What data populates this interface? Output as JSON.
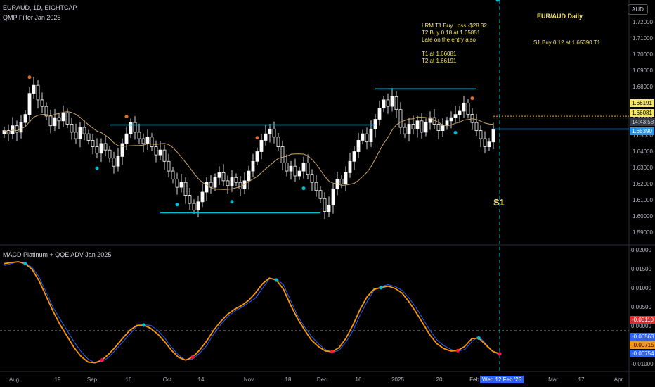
{
  "header": {
    "symbol_line": "EURAUD, 1D, EIGHTCAP",
    "indicator_line": "QMP Filter Jan 2025",
    "macd_title": "MACD Platinum + QQE ADV Jan 2025"
  },
  "annotations": {
    "title": "EUR/AUD Daily",
    "s1_note": "S1 Buy 0.12 at 1.65390 T1",
    "trade_notes": "LRM T1 Buy Loss -$28.32\nT2 Buy 0.18 at 1.65851\nLate on the entry also\n\nT1 at 1.66081\nT2 at 1.66191",
    "s1_label": "S1"
  },
  "currency_button": "AUD",
  "price_tags": [
    {
      "label": "1.66191",
      "value": 1.66191,
      "bg": "#f5e663",
      "fg": "#000000"
    },
    {
      "label": "1.66081",
      "value": 1.66081,
      "bg": "#f5e663",
      "fg": "#000000"
    },
    {
      "label": "14:43:58",
      "value": 1.6553,
      "bg": "#363a45",
      "fg": "#d1d4dc"
    },
    {
      "label": "1.65390",
      "value": 1.6539,
      "bg": "#2196f3",
      "fg": "#ffffff"
    }
  ],
  "macd_tags": [
    {
      "label": "-0.00110",
      "value": -0.0011,
      "bg": "#e02c2c",
      "fg": "#ffffff"
    },
    {
      "label": "-0.00563",
      "value": -0.00563,
      "bg": "#2962ff",
      "fg": "#ffffff"
    },
    {
      "label": "-0.00715",
      "value": -0.00715,
      "bg": "#ff9800",
      "fg": "#000000"
    },
    {
      "label": "-0.00754",
      "value": -0.00754,
      "bg": "#2962ff",
      "fg": "#ffffff"
    }
  ],
  "date_tag": "Wed 12 Feb '25",
  "colors": {
    "up": "#ffffff",
    "down": "#ffffff",
    "ma": "#c8a66a",
    "level": "#00bcd4",
    "macd_fast": "#2962ff",
    "macd_slow": "#ff9800",
    "dot_up": "#00bcd4",
    "dot_down": "#ff1744",
    "qmp_dot": "#e06c2c"
  },
  "chart_data": [
    {
      "type": "candlestick",
      "title": "EURAUD, 1D, EIGHTCAP",
      "ylim": [
        1.585,
        1.725
      ],
      "y_ticks": [
        1.59,
        1.6,
        1.61,
        1.62,
        1.63,
        1.64,
        1.65,
        1.66,
        1.67,
        1.68,
        1.69,
        1.7,
        1.71,
        1.72
      ],
      "x_ticks": [
        "Aug",
        "19",
        "Sep",
        "16",
        "Oct",
        "14",
        "Nov",
        "18",
        "Dec",
        "16",
        "2025",
        "20",
        "Feb",
        "Mar",
        "17",
        "Apr"
      ],
      "closes": [
        1.653,
        1.651,
        1.656,
        1.652,
        1.658,
        1.663,
        1.676,
        1.681,
        1.672,
        1.668,
        1.662,
        1.656,
        1.661,
        1.659,
        1.664,
        1.657,
        1.652,
        1.648,
        1.655,
        1.651,
        1.647,
        1.643,
        1.639,
        1.645,
        1.641,
        1.636,
        1.631,
        1.637,
        1.645,
        1.651,
        1.658,
        1.652,
        1.648,
        1.645,
        1.649,
        1.643,
        1.638,
        1.641,
        1.634,
        1.628,
        1.623,
        1.618,
        1.621,
        1.613,
        1.608,
        1.604,
        1.609,
        1.615,
        1.621,
        1.618,
        1.624,
        1.627,
        1.622,
        1.619,
        1.624,
        1.621,
        1.617,
        1.622,
        1.628,
        1.634,
        1.64,
        1.647,
        1.651,
        1.654,
        1.649,
        1.643,
        1.633,
        1.628,
        1.631,
        1.625,
        1.628,
        1.633,
        1.626,
        1.621,
        1.616,
        1.611,
        1.603,
        1.607,
        1.617,
        1.623,
        1.62,
        1.627,
        1.634,
        1.64,
        1.647,
        1.651,
        1.646,
        1.654,
        1.66,
        1.667,
        1.672,
        1.668,
        1.674,
        1.666,
        1.655,
        1.651,
        1.657,
        1.654,
        1.659,
        1.652,
        1.658,
        1.661,
        1.657,
        1.653,
        1.656,
        1.659,
        1.661,
        1.663,
        1.665,
        1.67,
        1.663,
        1.658,
        1.653,
        1.648,
        1.643,
        1.646,
        1.6539
      ],
      "s1_buy": 1.6539,
      "t1": 1.66081,
      "t2": 1.66191,
      "levels": [
        1.6565,
        1.6022,
        1.6788
      ]
    },
    {
      "type": "line",
      "title": "MACD Platinum + QQE ADV Jan 2025",
      "ylim": [
        -0.0105,
        0.0205
      ],
      "y_ticks": [
        0.02,
        0.015,
        0.01,
        0.005,
        0.0,
        -0.005,
        -0.01
      ],
      "y_tick_labels": [
        "0.02000",
        "0.01500",
        "0.01000",
        "0.00500",
        "0.00000",
        "-0.00500",
        "-0.01000"
      ],
      "series": [
        {
          "values": [
            0.016,
            0.0165,
            0.017,
            0.0168,
            0.0155,
            0.013,
            0.009,
            0.005,
            0.002,
            -0.001,
            -0.004,
            -0.0065,
            -0.0085,
            -0.0095,
            -0.0092,
            -0.008,
            -0.006,
            -0.004,
            -0.002,
            0.0,
            0.0005,
            0.0003,
            -0.001,
            -0.003,
            -0.0055,
            -0.0075,
            -0.0088,
            -0.0085,
            -0.007,
            -0.005,
            -0.002,
            0.0005,
            0.0025,
            0.004,
            0.005,
            0.0062,
            0.0075,
            0.01,
            0.0125,
            0.0125,
            0.011,
            0.007,
            0.003,
            0.0,
            -0.0025,
            -0.0045,
            -0.006,
            -0.0068,
            -0.0062,
            -0.004,
            -0.001,
            0.003,
            0.0065,
            0.0095,
            0.0105,
            0.011,
            0.0105,
            0.0095,
            0.0075,
            0.005,
            0.002,
            -0.001,
            -0.0035,
            -0.005,
            -0.006,
            -0.0065,
            -0.006,
            -0.004,
            -0.0025,
            -0.0045,
            -0.0065,
            -0.0075
          ]
        },
        {
          "values": [
            0.0165,
            0.0168,
            0.017,
            0.0165,
            0.015,
            0.012,
            0.008,
            0.004,
            0.0005,
            -0.0025,
            -0.0055,
            -0.0078,
            -0.0093,
            -0.0095,
            -0.0088,
            -0.0072,
            -0.0052,
            -0.003,
            -0.001,
            0.0003,
            0.0004,
            -0.0005,
            -0.002,
            -0.004,
            -0.0063,
            -0.0081,
            -0.0088,
            -0.008,
            -0.0062,
            -0.0038,
            -0.001,
            0.0013,
            0.0032,
            0.0045,
            0.0055,
            0.0068,
            0.0088,
            0.0112,
            0.0127,
            0.0122,
            0.0098,
            0.0058,
            0.0022,
            -0.0008,
            -0.0035,
            -0.0052,
            -0.0064,
            -0.0066,
            -0.0055,
            -0.003,
            0.0005,
            0.0045,
            0.0078,
            0.0098,
            0.0102,
            0.0106,
            0.01,
            0.0088,
            0.0065,
            0.0038,
            0.0008,
            -0.0022,
            -0.0045,
            -0.0058,
            -0.0064,
            -0.0063,
            -0.0052,
            -0.0032,
            -0.003,
            -0.0048,
            -0.0065,
            -0.00715
          ]
        }
      ]
    }
  ]
}
